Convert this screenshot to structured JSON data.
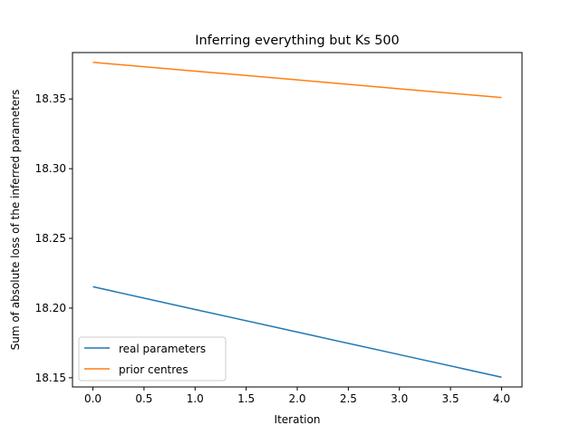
{
  "chart_data": {
    "type": "line",
    "title": "Inferring everything but Ks 500",
    "xlabel": "Iteration",
    "ylabel": "Sum of absolute loss of the inferred parameters",
    "x": [
      0,
      1,
      2,
      3,
      4
    ],
    "xlim": [
      -0.2,
      4.2
    ],
    "ylim": [
      18.1434,
      18.3833
    ],
    "xticks": [
      "0.0",
      "0.5",
      "1.0",
      "1.5",
      "2.0",
      "2.5",
      "3.0",
      "3.5",
      "4.0"
    ],
    "yticks": [
      "18.15",
      "18.20",
      "18.25",
      "18.30",
      "18.35"
    ],
    "grid": false,
    "legend_position": "lower-left",
    "series": [
      {
        "name": "real parameters",
        "color": "#1f77b4",
        "values": [
          18.2153,
          18.199,
          18.1828,
          18.1666,
          18.1504
        ]
      },
      {
        "name": "prior centres",
        "color": "#ff7f0e",
        "values": [
          18.3763,
          18.37,
          18.3637,
          18.3573,
          18.351
        ]
      }
    ]
  }
}
